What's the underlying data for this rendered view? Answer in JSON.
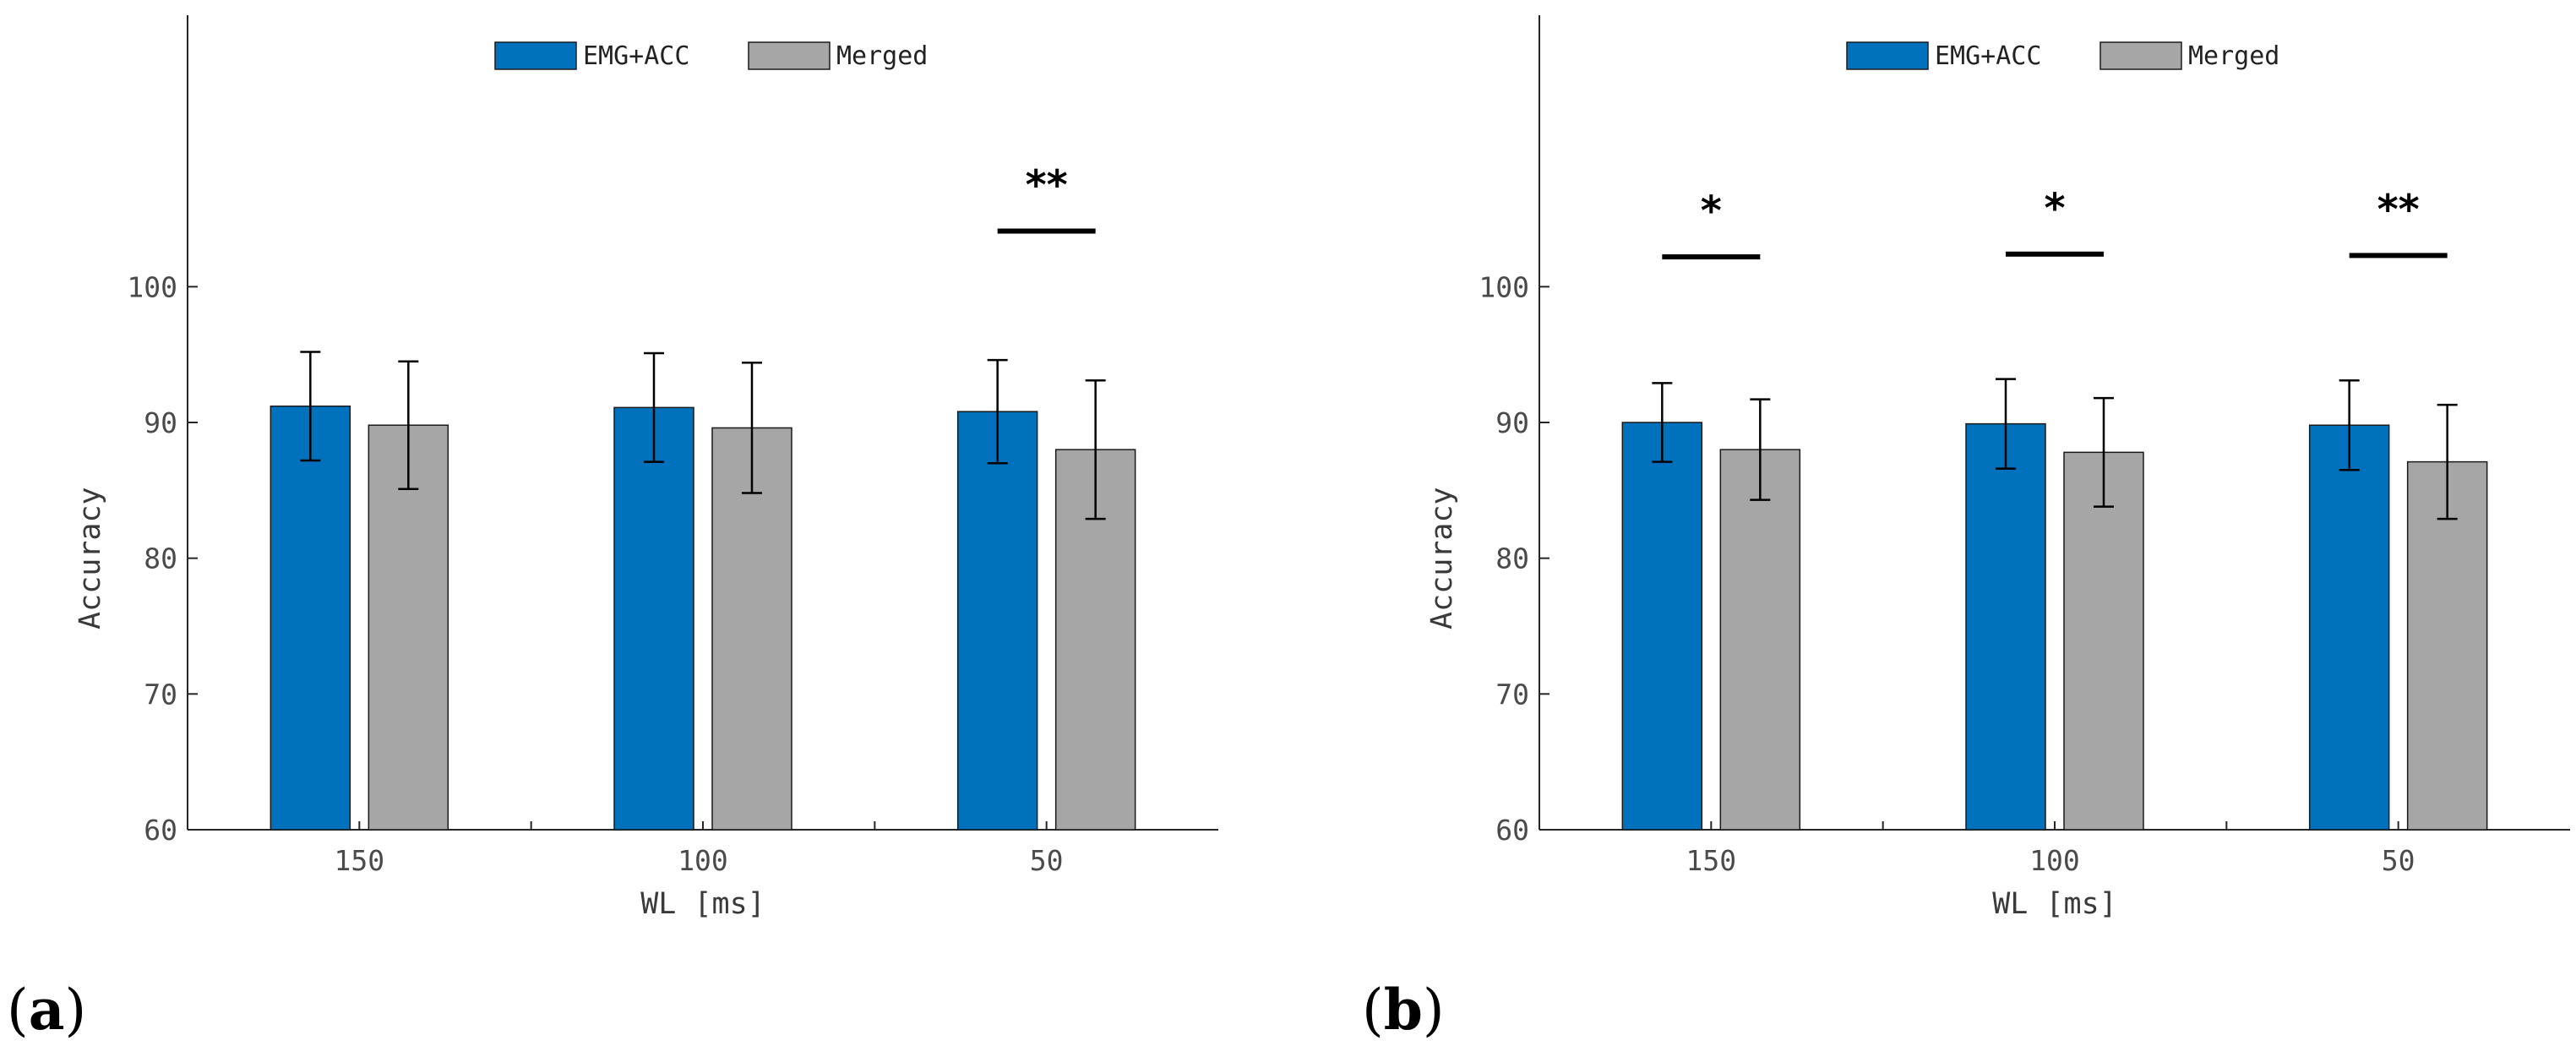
{
  "chart_data": [
    {
      "type": "bar",
      "panel_label": "a",
      "title": "",
      "xlabel": "WL [ms]",
      "ylabel": "Accuracy",
      "categories": [
        "150",
        "100",
        "50"
      ],
      "ylim": [
        60,
        120
      ],
      "yticks": [
        60,
        70,
        80,
        90,
        100
      ],
      "grid": false,
      "legend_position": "top-center",
      "series": [
        {
          "name": "EMG+ACC",
          "color": "#0072bd",
          "values": [
            91.2,
            91.1,
            90.8
          ],
          "errors": [
            4.0,
            4.0,
            3.8
          ]
        },
        {
          "name": "Merged",
          "color": "#a6a6a6",
          "values": [
            89.8,
            89.6,
            88.0
          ],
          "errors": [
            4.7,
            4.8,
            5.1
          ]
        }
      ],
      "significance": [
        {
          "category": "50",
          "marker": "**",
          "line_y": 104.1
        }
      ]
    },
    {
      "type": "bar",
      "panel_label": "b",
      "title": "",
      "xlabel": "WL [ms]",
      "ylabel": "Accuracy",
      "categories": [
        "150",
        "100",
        "50"
      ],
      "ylim": [
        60,
        120
      ],
      "yticks": [
        60,
        70,
        80,
        90,
        100
      ],
      "grid": false,
      "legend_position": "top-center",
      "series": [
        {
          "name": "EMG+ACC",
          "color": "#0072bd",
          "values": [
            90.0,
            89.9,
            89.8
          ],
          "errors": [
            2.9,
            3.3,
            3.3
          ]
        },
        {
          "name": "Merged",
          "color": "#a6a6a6",
          "values": [
            88.0,
            87.8,
            87.1
          ],
          "errors": [
            3.7,
            4.0,
            4.2
          ]
        }
      ],
      "significance": [
        {
          "category": "150",
          "marker": "*",
          "line_y": 102.2
        },
        {
          "category": "100",
          "marker": "*",
          "line_y": 102.4
        },
        {
          "category": "50",
          "marker": "**",
          "line_y": 102.3
        }
      ]
    }
  ]
}
